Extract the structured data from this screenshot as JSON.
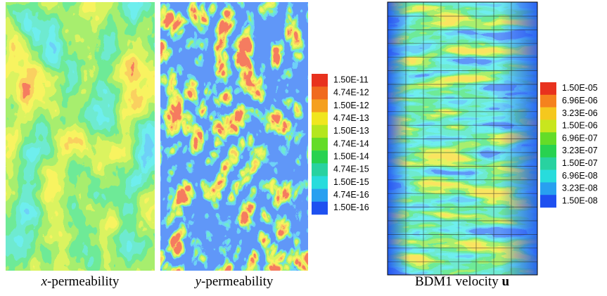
{
  "figure": {
    "panels": [
      {
        "caption": {
          "var": "x",
          "text": "-permeability"
        }
      },
      {
        "caption": {
          "var": "y",
          "text": "-permeability"
        }
      },
      {
        "caption": {
          "text": "BDM1 velocity ",
          "var": "u"
        }
      }
    ],
    "colorbars": [
      {
        "labels": [
          "1.50E-11",
          "4.74E-12",
          "1.50E-12",
          "4.74E-13",
          "1.50E-13",
          "4.74E-14",
          "1.50E-14",
          "4.74E-15",
          "1.50E-15",
          "4.74E-16",
          "1.50E-16"
        ],
        "colors": [
          "#e8321e",
          "#f06a1e",
          "#f5a01e",
          "#f0e61e",
          "#b4e61e",
          "#64dc28",
          "#28d250",
          "#28d2a0",
          "#28dcdc",
          "#28a0f0",
          "#1e50f0"
        ]
      },
      {
        "labels": [
          "1.50E-05",
          "6.96E-06",
          "3.23E-06",
          "1.50E-06",
          "6.96E-07",
          "3.23E-07",
          "1.50E-07",
          "6.96E-08",
          "3.23E-08",
          "1.50E-08"
        ],
        "colors": [
          "#e8321e",
          "#f5821e",
          "#f5c81e",
          "#c8e61e",
          "#64dc28",
          "#28d250",
          "#28d2a0",
          "#28dcdc",
          "#28a0f0",
          "#1e50f0"
        ]
      }
    ]
  }
}
